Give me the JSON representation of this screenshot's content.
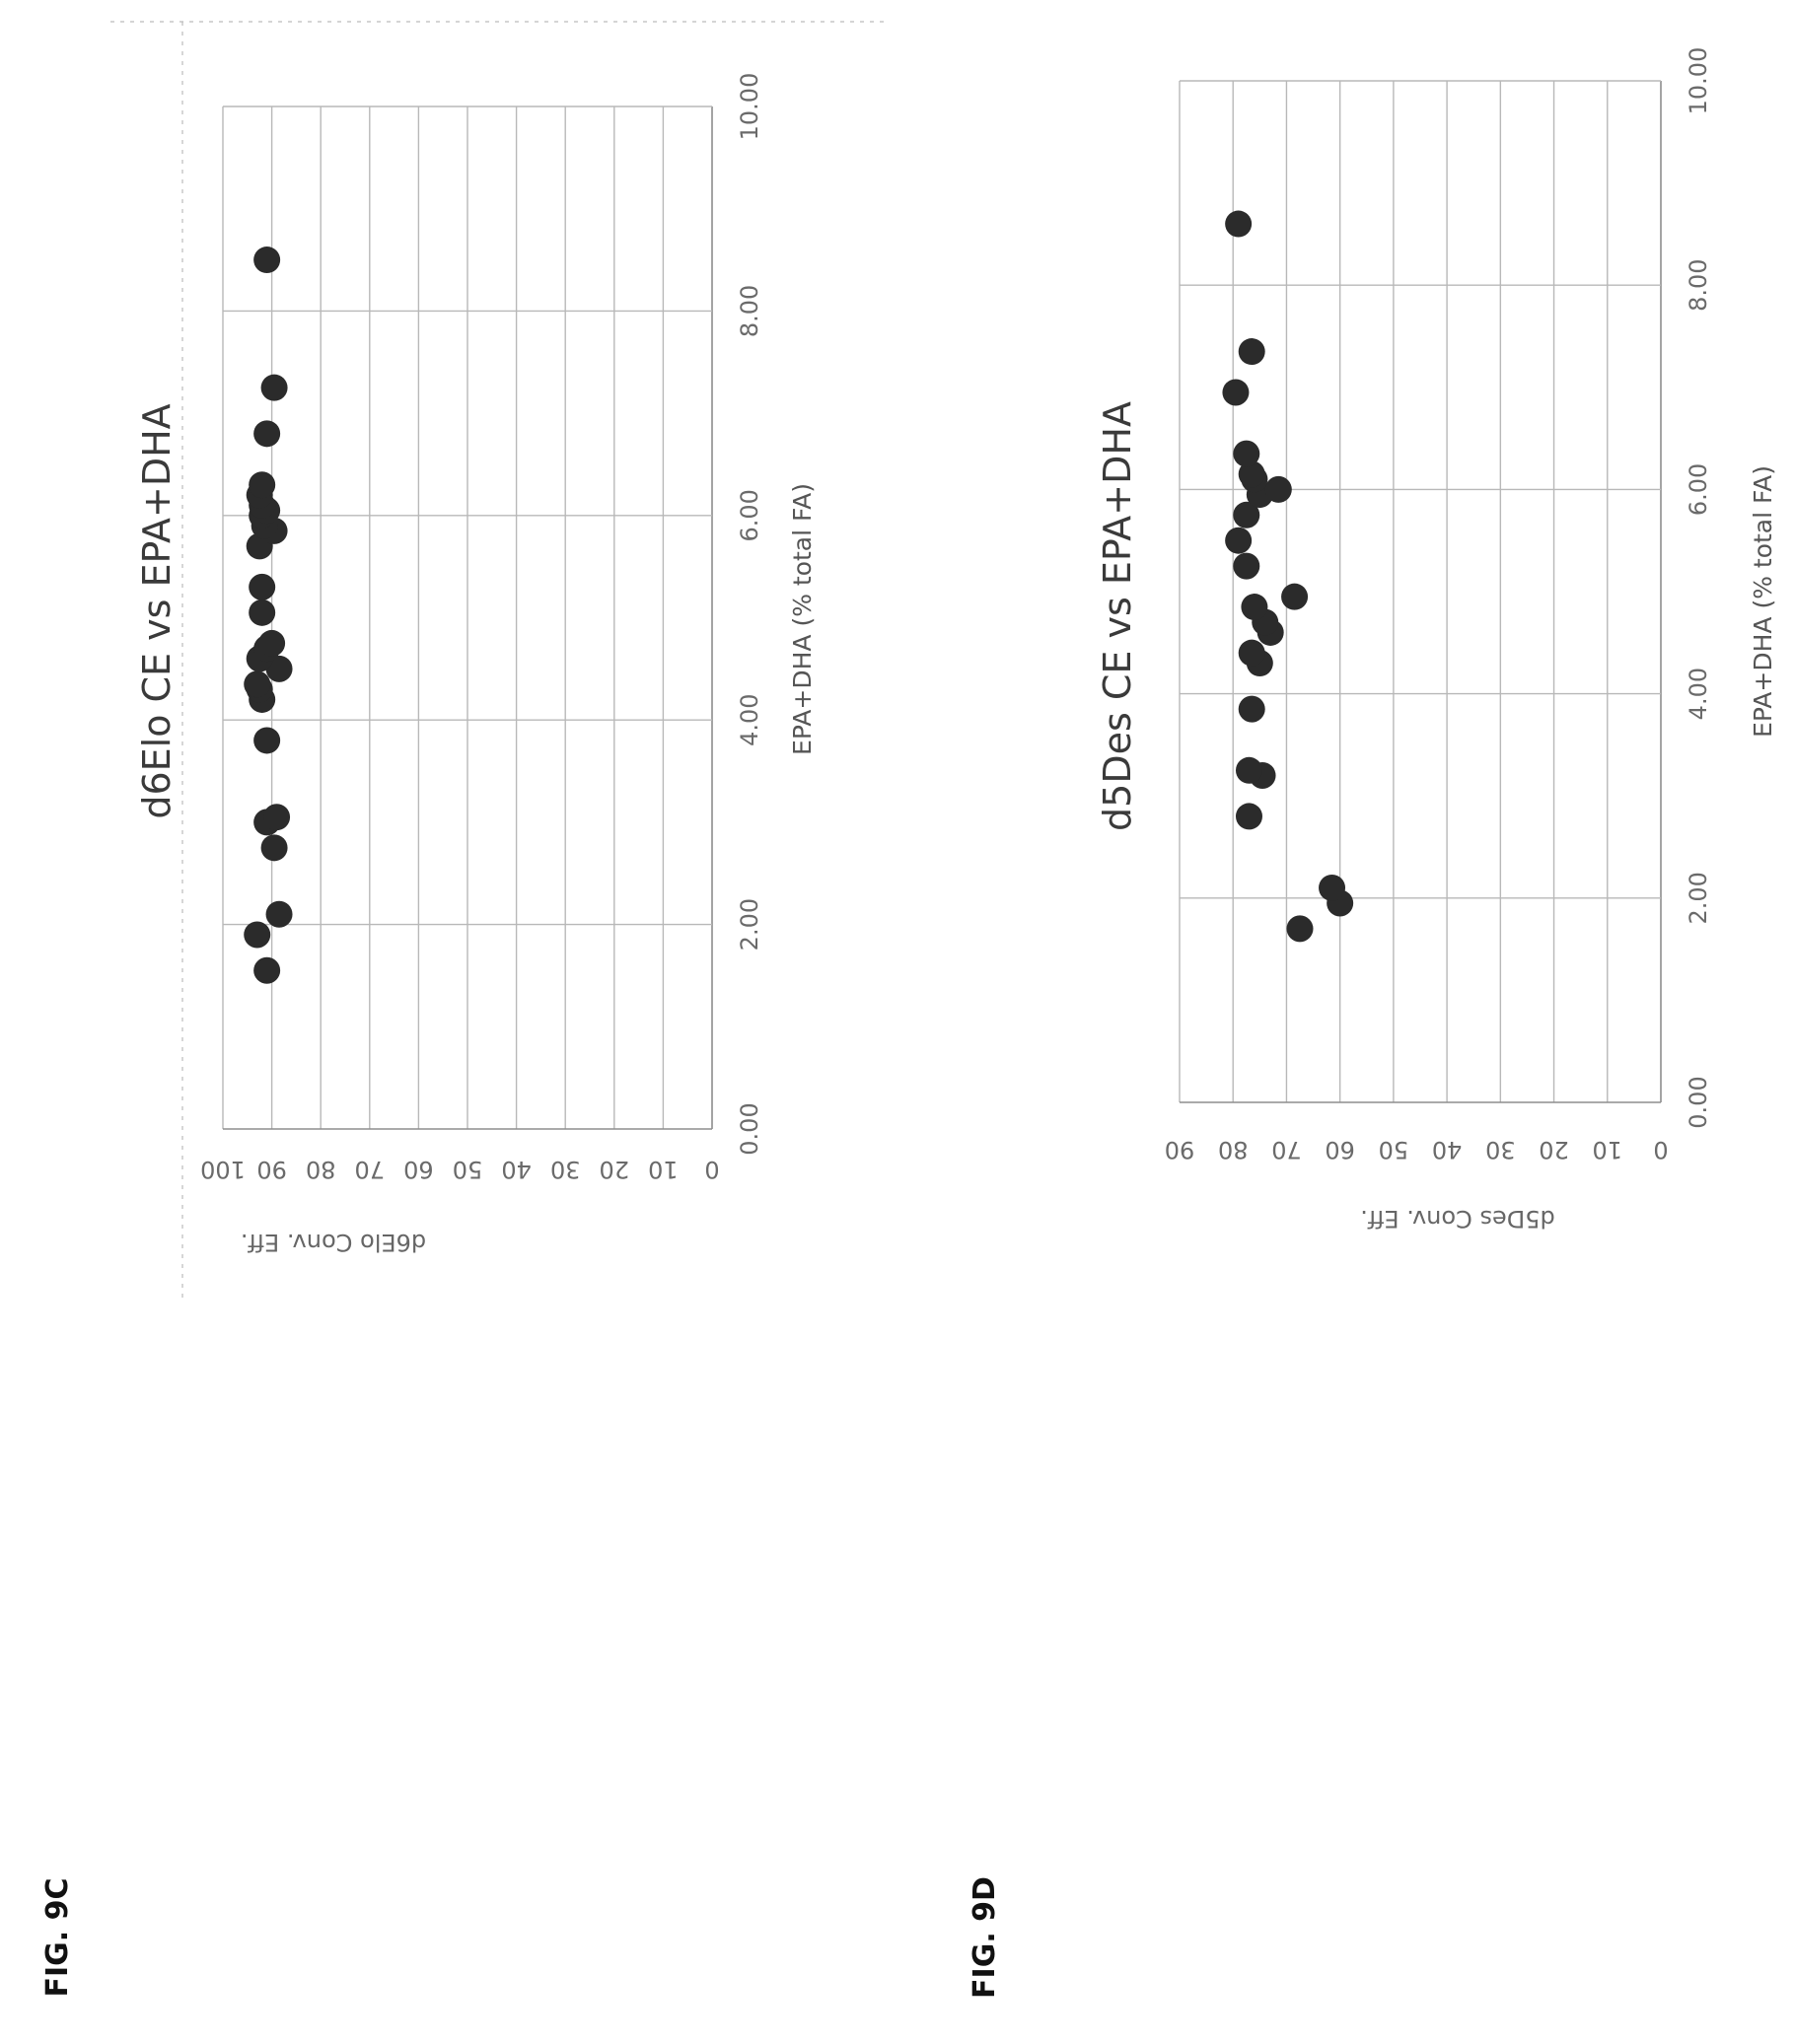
{
  "figures": [
    {
      "label": "FIG. 9C"
    },
    {
      "label": "FIG. 9D"
    }
  ],
  "chart_data": [
    {
      "type": "scatter",
      "title": "d6Elo CE vs EPA+DHA",
      "xlabel": "EPA+DHA  (% total FA)",
      "ylabel": "d6Elo Conv. Eff.",
      "xlim": [
        0,
        10
      ],
      "ylim": [
        0,
        100
      ],
      "x_ticks": [
        "0.00",
        "2.00",
        "4.00",
        "6.00",
        "8.00",
        "10.00"
      ],
      "y_ticks": [
        "0",
        "10",
        "20",
        "30",
        "40",
        "50",
        "60",
        "70",
        "80",
        "90",
        "100"
      ],
      "grid": true,
      "marker_color": "#2b2b2b",
      "points": [
        {
          "x": 1.55,
          "y": 91
        },
        {
          "x": 1.9,
          "y": 93
        },
        {
          "x": 2.1,
          "y": 88.5
        },
        {
          "x": 2.75,
          "y": 89.5
        },
        {
          "x": 3.0,
          "y": 91
        },
        {
          "x": 3.05,
          "y": 89
        },
        {
          "x": 3.8,
          "y": 91
        },
        {
          "x": 4.2,
          "y": 92
        },
        {
          "x": 4.3,
          "y": 92.5
        },
        {
          "x": 4.35,
          "y": 93
        },
        {
          "x": 4.5,
          "y": 88.5
        },
        {
          "x": 4.6,
          "y": 92.5
        },
        {
          "x": 4.7,
          "y": 91
        },
        {
          "x": 4.75,
          "y": 90
        },
        {
          "x": 5.05,
          "y": 92
        },
        {
          "x": 5.3,
          "y": 92
        },
        {
          "x": 5.7,
          "y": 92.5
        },
        {
          "x": 5.85,
          "y": 89.5
        },
        {
          "x": 5.9,
          "y": 91.5
        },
        {
          "x": 6.0,
          "y": 92
        },
        {
          "x": 6.05,
          "y": 91
        },
        {
          "x": 6.1,
          "y": 92
        },
        {
          "x": 6.2,
          "y": 92.5
        },
        {
          "x": 6.3,
          "y": 92
        },
        {
          "x": 6.8,
          "y": 91
        },
        {
          "x": 7.25,
          "y": 89.5
        },
        {
          "x": 8.5,
          "y": 91
        }
      ]
    },
    {
      "type": "scatter",
      "title": "d5Des CE vs EPA+DHA",
      "xlabel": "EPA+DHA  (% total FA)",
      "ylabel": "d5Des Conv. Eff.",
      "xlim": [
        0,
        10
      ],
      "ylim": [
        0,
        90
      ],
      "x_ticks": [
        "0.00",
        "2.00",
        "4.00",
        "6.00",
        "8.00",
        "10.00"
      ],
      "y_ticks": [
        "0",
        "10",
        "20",
        "30",
        "40",
        "50",
        "60",
        "70",
        "80",
        "90"
      ],
      "grid": true,
      "marker_color": "#2b2b2b",
      "points": [
        {
          "x": 1.7,
          "y": 67.5
        },
        {
          "x": 1.95,
          "y": 60
        },
        {
          "x": 2.1,
          "y": 61.5
        },
        {
          "x": 2.8,
          "y": 77
        },
        {
          "x": 3.2,
          "y": 74.5
        },
        {
          "x": 3.25,
          "y": 77
        },
        {
          "x": 3.85,
          "y": 76.5
        },
        {
          "x": 4.3,
          "y": 75
        },
        {
          "x": 4.4,
          "y": 76.5
        },
        {
          "x": 4.6,
          "y": 73
        },
        {
          "x": 4.7,
          "y": 74
        },
        {
          "x": 4.85,
          "y": 76
        },
        {
          "x": 4.95,
          "y": 68.5
        },
        {
          "x": 5.25,
          "y": 77.5
        },
        {
          "x": 5.5,
          "y": 79
        },
        {
          "x": 5.75,
          "y": 77.5
        },
        {
          "x": 5.95,
          "y": 75
        },
        {
          "x": 6.0,
          "y": 71.5
        },
        {
          "x": 6.1,
          "y": 76
        },
        {
          "x": 6.15,
          "y": 76.5
        },
        {
          "x": 6.35,
          "y": 77.5
        },
        {
          "x": 6.95,
          "y": 79.5
        },
        {
          "x": 7.35,
          "y": 76.5
        },
        {
          "x": 8.6,
          "y": 79
        }
      ]
    }
  ]
}
